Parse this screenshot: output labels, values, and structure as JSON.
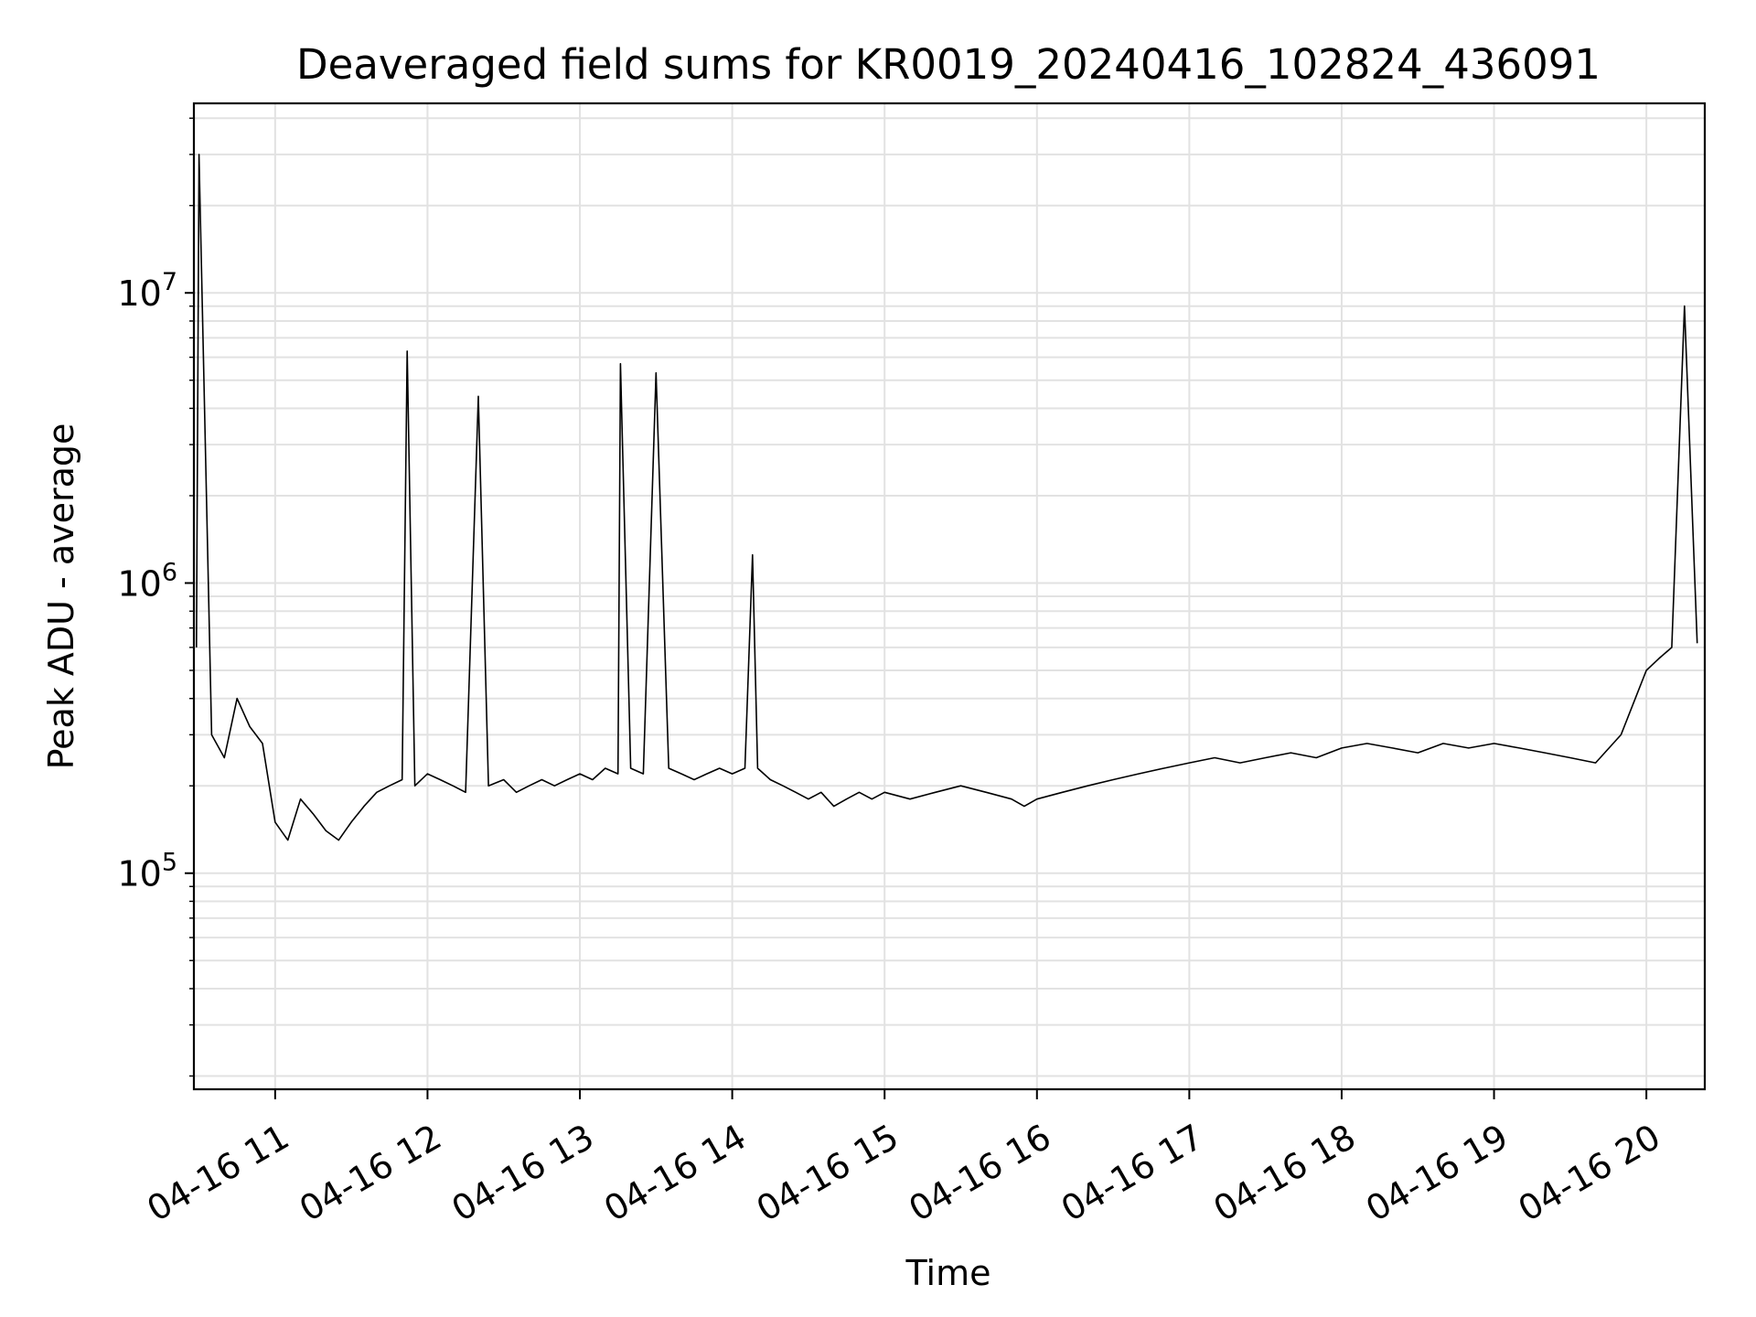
{
  "chart_data": {
    "type": "line",
    "title": "Deaveraged field sums for KR0019_20240416_102824_436091",
    "xlabel": "Time",
    "ylabel": "Peak ADU - average",
    "y_scale": "log",
    "ylim": [
      18000,
      45000000
    ],
    "xlim": [
      "2024-04-16T10:28",
      "2024-04-16T20:23"
    ],
    "x_ticks": [
      "04-16 11",
      "04-16 12",
      "04-16 13",
      "04-16 14",
      "04-16 15",
      "04-16 16",
      "04-16 17",
      "04-16 18",
      "04-16 19",
      "04-16 20"
    ],
    "x_tick_times": [
      "2024-04-16T11:00",
      "2024-04-16T12:00",
      "2024-04-16T13:00",
      "2024-04-16T14:00",
      "2024-04-16T15:00",
      "2024-04-16T16:00",
      "2024-04-16T17:00",
      "2024-04-16T18:00",
      "2024-04-16T19:00",
      "2024-04-16T20:00"
    ],
    "y_tick_labels": [
      {
        "base": "10",
        "exp": "5",
        "value": 100000
      },
      {
        "base": "10",
        "exp": "6",
        "value": 1000000
      },
      {
        "base": "10",
        "exp": "7",
        "value": 10000000
      }
    ],
    "grid": true,
    "line_color": "#000000",
    "series": [
      {
        "x": [
          "2024-04-16T10:29",
          "2024-04-16T10:30",
          "2024-04-16T10:35",
          "2024-04-16T10:40",
          "2024-04-16T10:45",
          "2024-04-16T10:50",
          "2024-04-16T10:55",
          "2024-04-16T11:00",
          "2024-04-16T11:05",
          "2024-04-16T11:10",
          "2024-04-16T11:15",
          "2024-04-16T11:20",
          "2024-04-16T11:25",
          "2024-04-16T11:30",
          "2024-04-16T11:35",
          "2024-04-16T11:40",
          "2024-04-16T11:45",
          "2024-04-16T11:50",
          "2024-04-16T11:52",
          "2024-04-16T11:55",
          "2024-04-16T12:00",
          "2024-04-16T12:05",
          "2024-04-16T12:10",
          "2024-04-16T12:15",
          "2024-04-16T12:20",
          "2024-04-16T12:24",
          "2024-04-16T12:30",
          "2024-04-16T12:35",
          "2024-04-16T12:40",
          "2024-04-16T12:45",
          "2024-04-16T12:50",
          "2024-04-16T12:55",
          "2024-04-16T13:00",
          "2024-04-16T13:05",
          "2024-04-16T13:10",
          "2024-04-16T13:15",
          "2024-04-16T13:16",
          "2024-04-16T13:20",
          "2024-04-16T13:25",
          "2024-04-16T13:30",
          "2024-04-16T13:35",
          "2024-04-16T13:40",
          "2024-04-16T13:45",
          "2024-04-16T13:50",
          "2024-04-16T13:55",
          "2024-04-16T14:00",
          "2024-04-16T14:05",
          "2024-04-16T14:08",
          "2024-04-16T14:10",
          "2024-04-16T14:15",
          "2024-04-16T14:20",
          "2024-04-16T14:25",
          "2024-04-16T14:30",
          "2024-04-16T14:35",
          "2024-04-16T14:40",
          "2024-04-16T14:45",
          "2024-04-16T14:50",
          "2024-04-16T14:55",
          "2024-04-16T15:00",
          "2024-04-16T15:10",
          "2024-04-16T15:20",
          "2024-04-16T15:30",
          "2024-04-16T15:40",
          "2024-04-16T15:50",
          "2024-04-16T15:55",
          "2024-04-16T16:00",
          "2024-04-16T16:10",
          "2024-04-16T16:20",
          "2024-04-16T16:30",
          "2024-04-16T16:40",
          "2024-04-16T16:50",
          "2024-04-16T17:00",
          "2024-04-16T17:10",
          "2024-04-16T17:20",
          "2024-04-16T17:30",
          "2024-04-16T17:40",
          "2024-04-16T17:50",
          "2024-04-16T18:00",
          "2024-04-16T18:10",
          "2024-04-16T18:20",
          "2024-04-16T18:30",
          "2024-04-16T18:40",
          "2024-04-16T18:50",
          "2024-04-16T19:00",
          "2024-04-16T19:10",
          "2024-04-16T19:20",
          "2024-04-16T19:30",
          "2024-04-16T19:40",
          "2024-04-16T19:50",
          "2024-04-16T20:00",
          "2024-04-16T20:05",
          "2024-04-16T20:10",
          "2024-04-16T20:15",
          "2024-04-16T20:20"
        ],
        "values": [
          600000,
          30000000,
          300000,
          250000,
          400000,
          320000,
          280000,
          150000,
          130000,
          180000,
          160000,
          140000,
          130000,
          150000,
          170000,
          190000,
          200000,
          210000,
          6300000,
          200000,
          220000,
          210000,
          200000,
          190000,
          4400000,
          200000,
          210000,
          190000,
          200000,
          210000,
          200000,
          210000,
          220000,
          210000,
          230000,
          220000,
          5700000,
          230000,
          220000,
          5300000,
          230000,
          220000,
          210000,
          220000,
          230000,
          220000,
          230000,
          1250000,
          230000,
          210000,
          200000,
          190000,
          180000,
          190000,
          170000,
          180000,
          190000,
          180000,
          190000,
          180000,
          190000,
          200000,
          190000,
          180000,
          170000,
          180000,
          190000,
          200000,
          210000,
          220000,
          230000,
          240000,
          250000,
          240000,
          250000,
          260000,
          250000,
          270000,
          280000,
          270000,
          260000,
          280000,
          270000,
          280000,
          270000,
          260000,
          250000,
          240000,
          300000,
          500000,
          550000,
          600000,
          9000000,
          620000
        ]
      }
    ]
  }
}
